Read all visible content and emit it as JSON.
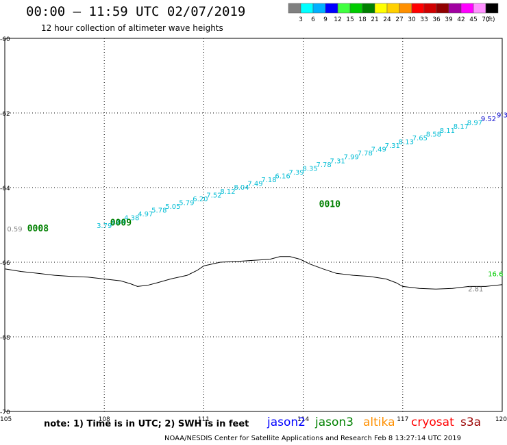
{
  "header": {
    "title": "00:00 – 11:59 UTC 02/07/2019",
    "subtitle": "12 hour collection of altimeter wave heights"
  },
  "colorbar": {
    "unit": "(ft)",
    "entries": [
      {
        "label": "3",
        "color": "#808080"
      },
      {
        "label": "6",
        "color": "#00ffff"
      },
      {
        "label": "9",
        "color": "#00b0ff"
      },
      {
        "label": "12",
        "color": "#0000ff"
      },
      {
        "label": "15",
        "color": "#40ff40"
      },
      {
        "label": "18",
        "color": "#00cc00"
      },
      {
        "label": "21",
        "color": "#008000"
      },
      {
        "label": "24",
        "color": "#ffff00"
      },
      {
        "label": "27",
        "color": "#ffd000"
      },
      {
        "label": "30",
        "color": "#ff9000"
      },
      {
        "label": "33",
        "color": "#ff0000"
      },
      {
        "label": "36",
        "color": "#d00000"
      },
      {
        "label": "39",
        "color": "#900000"
      },
      {
        "label": "42",
        "color": "#a000a0"
      },
      {
        "label": "45",
        "color": "#ff00ff"
      },
      {
        "label": "70",
        "color": "#ff90ff"
      },
      {
        "label": "",
        "color": "#000000"
      }
    ]
  },
  "axes": {
    "lon_ticks": [
      "105",
      "108",
      "111",
      "114",
      "117",
      "120"
    ],
    "lat_ticks": [
      "-60",
      "-62",
      "-64",
      "-66",
      "-68",
      "-70"
    ]
  },
  "coastline": [
    [
      105.0,
      -66.18
    ],
    [
      105.5,
      -66.25
    ],
    [
      106.0,
      -66.3
    ],
    [
      106.5,
      -66.35
    ],
    [
      107.0,
      -66.38
    ],
    [
      107.5,
      -66.4
    ],
    [
      108.0,
      -66.45
    ],
    [
      108.5,
      -66.5
    ],
    [
      108.8,
      -66.58
    ],
    [
      109.0,
      -66.65
    ],
    [
      109.3,
      -66.62
    ],
    [
      109.6,
      -66.55
    ],
    [
      110.0,
      -66.45
    ],
    [
      110.5,
      -66.35
    ],
    [
      110.8,
      -66.22
    ],
    [
      111.0,
      -66.1
    ],
    [
      111.5,
      -66.0
    ],
    [
      112.0,
      -65.98
    ],
    [
      112.5,
      -65.95
    ],
    [
      113.0,
      -65.92
    ],
    [
      113.3,
      -65.85
    ],
    [
      113.6,
      -65.85
    ],
    [
      113.9,
      -65.92
    ],
    [
      114.2,
      -66.05
    ],
    [
      114.6,
      -66.18
    ],
    [
      115.0,
      -66.3
    ],
    [
      115.5,
      -66.35
    ],
    [
      116.0,
      -66.38
    ],
    [
      116.5,
      -66.45
    ],
    [
      116.8,
      -66.55
    ],
    [
      117.0,
      -66.65
    ],
    [
      117.5,
      -66.7
    ],
    [
      118.0,
      -66.72
    ],
    [
      118.5,
      -66.7
    ],
    [
      119.0,
      -66.65
    ],
    [
      119.5,
      -66.65
    ],
    [
      120.0,
      -66.6
    ]
  ],
  "track": {
    "start": [
      108.0,
      -65.08
    ],
    "end": [
      120.0,
      -62.12
    ],
    "color": "#00bcd4",
    "values": [
      "3.79",
      "3.84",
      "4.38",
      "4.97",
      "5.78",
      "5.05",
      "5.79",
      "6.20",
      "7.52",
      "8.12",
      "8.04",
      "7.49",
      "7.18",
      "6.16",
      "7.39",
      "8.35",
      "7.78",
      "7.31",
      "7.99",
      "7.78",
      "7.49",
      "7.31",
      "8.13",
      "7.65",
      "8.58",
      "8.11",
      "8.17",
      "8.97",
      "9.52",
      "9.3"
    ]
  },
  "time_labels": [
    {
      "text": "0008",
      "lon": 106.0,
      "lat": -65.17
    },
    {
      "text": "0009",
      "lon": 108.5,
      "lat": -65.02
    },
    {
      "text": "0010",
      "lon": 114.8,
      "lat": -64.52
    }
  ],
  "point_labels": [
    {
      "text": "0.59",
      "lon": 105.3,
      "lat": -65.17,
      "color": "#808080"
    },
    {
      "text": "2.81",
      "lon": 119.2,
      "lat": -66.78,
      "color": "#808080"
    },
    {
      "text": "16.6",
      "lon": 119.8,
      "lat": -66.38,
      "color": "#00cc00"
    }
  ],
  "footer": {
    "note": "note:  1) Time is in UTC;  2) SWH is in feet",
    "credit": "NOAA/NESDIS Center for Satellite Applications and Research    Feb  8 13:27:14 UTC 2019"
  },
  "satellites": [
    {
      "name": "jason2",
      "color": "#0000ff"
    },
    {
      "name": "jason3",
      "color": "#008000"
    },
    {
      "name": "altika",
      "color": "#ff9000"
    },
    {
      "name": "cryosat",
      "color": "#ff0000"
    },
    {
      "name": "s3a",
      "color": "#990000"
    }
  ]
}
